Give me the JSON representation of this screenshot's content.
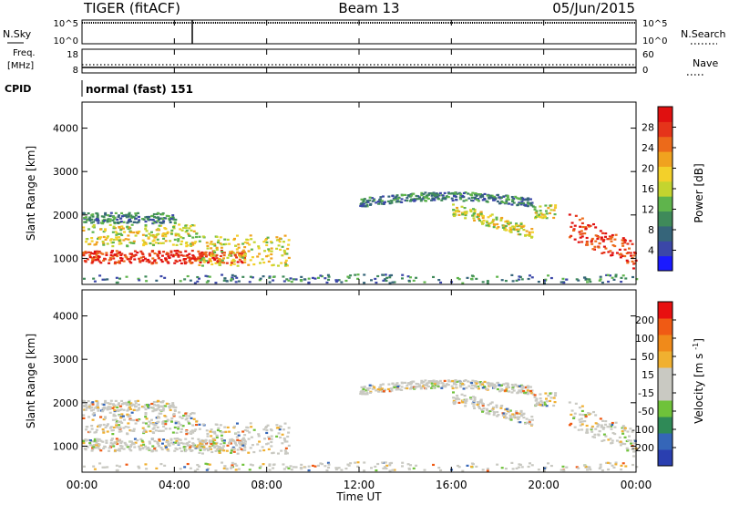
{
  "header": {
    "radar": "TIGER (fitACF)",
    "beam": "Beam 13",
    "date": "05/Jun/2015"
  },
  "panels": {
    "nsky": {
      "label": "N.Sky",
      "left_ticks": [
        "10^5",
        "10^0"
      ],
      "right_ticks": [
        "10^5",
        "10^0"
      ],
      "right_label": "N.Search"
    },
    "freq": {
      "label": "Freq.",
      "unit": "[MHz]",
      "left_ticks": [
        "18",
        "8"
      ],
      "right_ticks": [
        "60",
        "0"
      ],
      "right_label": "Nave"
    },
    "cpid": {
      "label": "CPID",
      "mode": "normal (fast) 151"
    }
  },
  "colors": {
    "power_scale": [
      "#1a1aff",
      "#3b47a8",
      "#36657a",
      "#3f8a5a",
      "#5fb44c",
      "#c4d42f",
      "#f3d02a",
      "#f0a21f",
      "#ec6a1a",
      "#e5341a",
      "#e01010"
    ],
    "velocity_scale": [
      "#2a3fb0",
      "#3566b8",
      "#2f8a57",
      "#6fc23a",
      "#c9c9c2",
      "#c9c9c2",
      "#f0b030",
      "#f08a1a",
      "#f05a14",
      "#e81010"
    ]
  },
  "chart_data": [
    {
      "type": "heatmap",
      "name": "power",
      "ylabel": "Slant Range [km]",
      "xlabel": "Time UT",
      "x_ticks": [
        "00:00",
        "04:00",
        "08:00",
        "12:00",
        "16:00",
        "20:00",
        "00:00"
      ],
      "y_ticks": [
        "1000",
        "2000",
        "3000",
        "4000"
      ],
      "ylim": [
        400,
        4600
      ],
      "xlim_hours": [
        0,
        24
      ],
      "colorbar": {
        "label": "Power [dB]",
        "ticks": [
          "4",
          "8",
          "12",
          "16",
          "20",
          "24",
          "28"
        ],
        "range": [
          0,
          32
        ]
      },
      "echo_bands": [
        {
          "t": [
            0,
            7
          ],
          "range_center_km": 1050,
          "width_km": 300,
          "level": "high"
        },
        {
          "t": [
            0,
            5
          ],
          "range_center_km": 1550,
          "width_km": 500,
          "level": "mid"
        },
        {
          "t": [
            0,
            4
          ],
          "range_center_km": 1950,
          "width_km": 250,
          "level": "low"
        },
        {
          "t": [
            5,
            9
          ],
          "range_center_km": 1200,
          "width_km": 700,
          "level": "mid"
        },
        {
          "t": [
            12,
            19.5
          ],
          "range_center_km": 2300,
          "width_km": 200,
          "level": "low"
        },
        {
          "t": [
            16,
            19.5
          ],
          "range_center_km": 1700,
          "width_km": 300,
          "level": "mid"
        },
        {
          "t": [
            19.5,
            20.5
          ],
          "range_center_km": 2100,
          "width_km": 300,
          "level": "mid"
        },
        {
          "t": [
            21,
            24
          ],
          "range_center_km": 1300,
          "width_km": 600,
          "level": "high"
        }
      ]
    },
    {
      "type": "heatmap",
      "name": "velocity",
      "ylabel": "Slant Range [km]",
      "xlabel": "Time UT",
      "x_ticks": [
        "00:00",
        "04:00",
        "08:00",
        "12:00",
        "16:00",
        "20:00",
        "00:00"
      ],
      "y_ticks": [
        "1000",
        "2000",
        "3000",
        "4000"
      ],
      "ylim": [
        400,
        4600
      ],
      "xlim_hours": [
        0,
        24
      ],
      "colorbar": {
        "label": "Velocity [m s^-1]",
        "ticks": [
          "200",
          "100",
          "50",
          "15",
          "-15",
          "-50",
          "-100",
          "-200"
        ],
        "range": [
          -250,
          250
        ]
      }
    }
  ]
}
